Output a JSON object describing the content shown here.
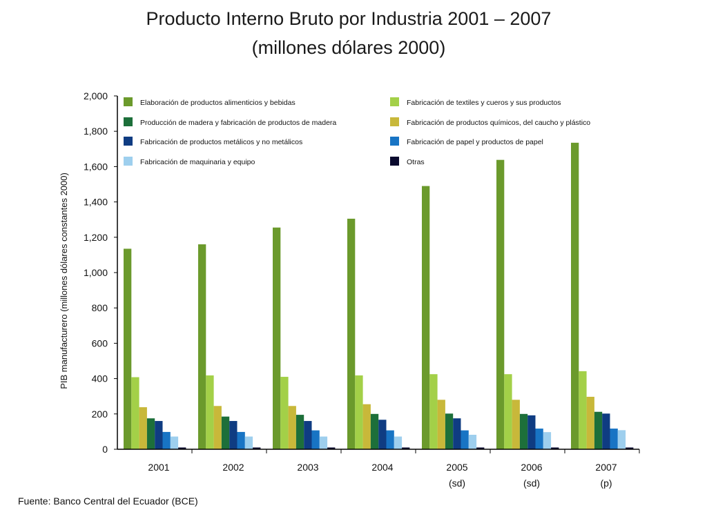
{
  "title": "Producto Interno Bruto por Industria 2001 – 2007",
  "subtitle": "(millones dólares 2000)",
  "source": "Fuente: Banco Central del Ecuador (BCE)",
  "chart_data": {
    "type": "bar",
    "ylabel": "PIB manufacturero (millones dólares constantes 2000)",
    "xlabel": "",
    "ylim": [
      0,
      2000
    ],
    "yticks": [
      0,
      200,
      400,
      600,
      800,
      1000,
      1200,
      1400,
      1600,
      1800,
      2000
    ],
    "ytick_labels": [
      "0",
      "200",
      "400",
      "600",
      "800",
      "1,000",
      "1,200",
      "1,400",
      "1,600",
      "1,800",
      "2,000"
    ],
    "grid": false,
    "legend_position": "top",
    "categories": [
      "2001",
      "2002",
      "2003",
      "2004",
      "2005",
      "2006",
      "2007"
    ],
    "category_sublabels": [
      "",
      "",
      "",
      "",
      "(sd)",
      "(sd)",
      "(p)"
    ],
    "series": [
      {
        "name": "Elaboración de productos alimenticios y bebidas",
        "color": "#6b9a2c",
        "values": [
          1135,
          1160,
          1255,
          1305,
          1490,
          1638,
          1735
        ]
      },
      {
        "name": "Fabricación de textiles y cueros y sus productos",
        "color": "#a3d048",
        "values": [
          408,
          418,
          410,
          418,
          425,
          425,
          442
        ]
      },
      {
        "name": "Fabricación de productos químicos, del caucho y plástico",
        "color": "#c8b83a",
        "values": [
          238,
          245,
          245,
          255,
          280,
          280,
          297
        ]
      },
      {
        "name": "Producción de madera y fabricación de productos de madera",
        "color": "#1d6f3a",
        "values": [
          175,
          185,
          195,
          200,
          202,
          200,
          212
        ]
      },
      {
        "name": "Fabricación de productos metálicos y no metálicos",
        "color": "#0f3c82",
        "values": [
          160,
          160,
          160,
          167,
          175,
          192,
          202
        ]
      },
      {
        "name": "Fabricación de papel y productos de papel",
        "color": "#1874c4",
        "values": [
          98,
          98,
          107,
          107,
          107,
          117,
          117
        ]
      },
      {
        "name": "Fabricación de maquinaria y equipo",
        "color": "#9ecfee",
        "values": [
          72,
          72,
          72,
          72,
          82,
          97,
          108
        ]
      },
      {
        "name": "Otras",
        "color": "#0a0a2e",
        "values": [
          10,
          10,
          10,
          10,
          10,
          10,
          10
        ]
      }
    ],
    "legend": [
      {
        "name": "Elaboración de productos alimenticios y bebidas",
        "color": "#6b9a2c"
      },
      {
        "name": "Fabricación de textiles y cueros y sus productos",
        "color": "#a3d048"
      },
      {
        "name": "Producción de madera y fabricación de productos de madera",
        "color": "#1d6f3a"
      },
      {
        "name": "Fabricación de productos químicos, del caucho y plástico",
        "color": "#c8b83a"
      },
      {
        "name": "Fabricación de productos metálicos y no metálicos",
        "color": "#0f3c82"
      },
      {
        "name": "Fabricación de papel y productos de papel",
        "color": "#1874c4"
      },
      {
        "name": "Fabricación de maquinaria y equipo",
        "color": "#9ecfee"
      },
      {
        "name": "Otras",
        "color": "#0a0a2e"
      }
    ]
  }
}
